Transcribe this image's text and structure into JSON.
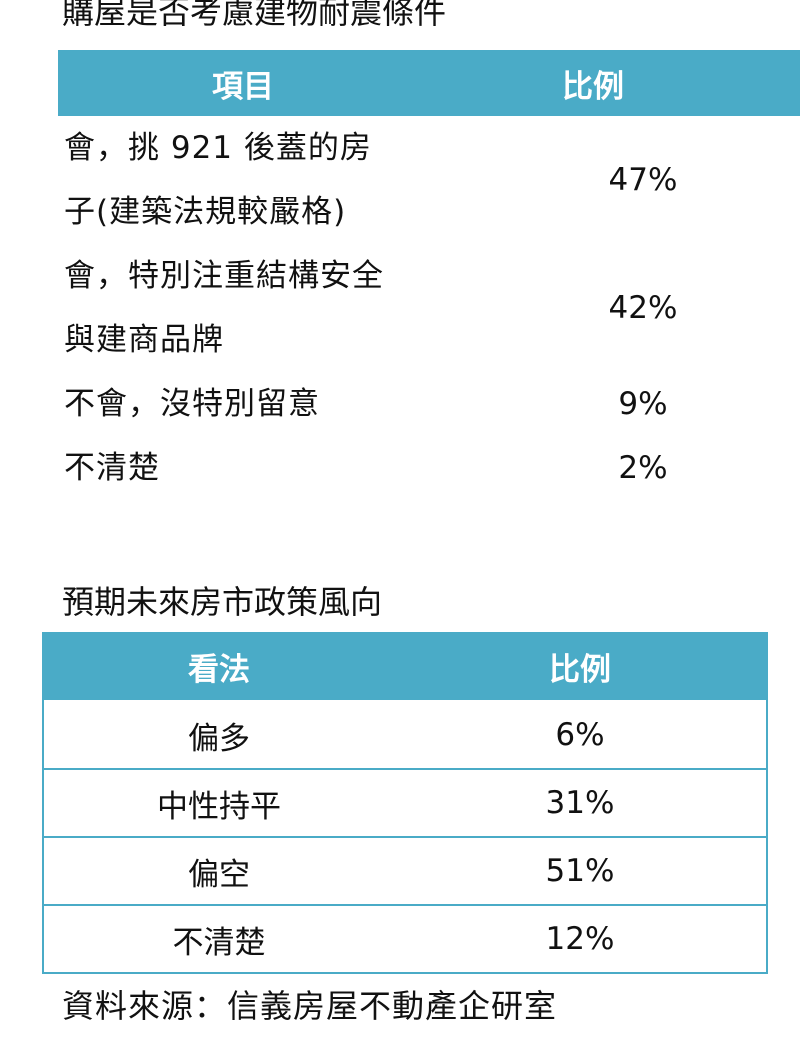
{
  "chart_data": [
    {
      "type": "table",
      "title": "購屋是否考慮建物耐震條件",
      "columns": [
        "項目",
        "比例"
      ],
      "rows": [
        {
          "label_lines": [
            "會，挑 921 後蓋的房",
            "子(建築法規較嚴格)"
          ],
          "value": "47%"
        },
        {
          "label_lines": [
            "會，特別注重結構安全",
            "與建商品牌"
          ],
          "value": "42%"
        },
        {
          "label_lines": [
            "不會，沒特別留意"
          ],
          "value": "9%"
        },
        {
          "label_lines": [
            "不清楚"
          ],
          "value": "2%"
        }
      ],
      "header_color": "#4aabc7"
    },
    {
      "type": "table",
      "title": "預期未來房市政策風向",
      "columns": [
        "看法",
        "比例"
      ],
      "rows": [
        {
          "label": "偏多",
          "value": "6%"
        },
        {
          "label": "中性持平",
          "value": "31%"
        },
        {
          "label": "偏空",
          "value": "51%"
        },
        {
          "label": "不清楚",
          "value": "12%"
        }
      ],
      "header_color": "#4aabc7"
    }
  ],
  "source": "資料來源：信義房屋不動產企研室"
}
